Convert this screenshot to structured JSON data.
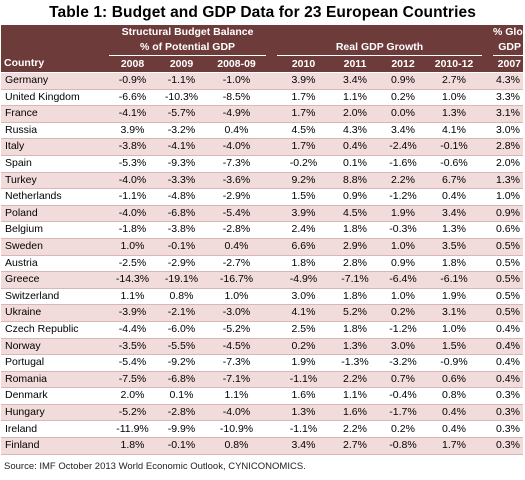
{
  "title": "Table 1:  Budget and GDP Data for 23 European Countries",
  "header": {
    "group_structural_line1": "Structural Budget Balance",
    "group_structural_line2": "% of Potential GDP",
    "group_real_gdp": "Real GDP Growth",
    "group_global_line1": "% Global",
    "group_global_line2": "GDP",
    "col_country": "Country",
    "col_sb_2008": "2008",
    "col_sb_2009": "2009",
    "col_sb_2008_09": "2008-09",
    "col_g_2010": "2010",
    "col_g_2011": "2011",
    "col_g_2012": "2012",
    "col_g_2010_12": "2010-12",
    "col_global_2007": "2007"
  },
  "rows": [
    {
      "country": "Germany",
      "sb2008": "-0.9%",
      "sb2009": "-1.1%",
      "sb0809": "-1.0%",
      "g2010": "3.9%",
      "g2011": "3.4%",
      "g2012": "0.9%",
      "g1012": "2.7%",
      "global": "4.3%"
    },
    {
      "country": "United Kingdom",
      "sb2008": "-6.6%",
      "sb2009": "-10.3%",
      "sb0809": "-8.5%",
      "g2010": "1.7%",
      "g2011": "1.1%",
      "g2012": "0.2%",
      "g1012": "1.0%",
      "global": "3.3%"
    },
    {
      "country": "France",
      "sb2008": "-4.1%",
      "sb2009": "-5.7%",
      "sb0809": "-4.9%",
      "g2010": "1.7%",
      "g2011": "2.0%",
      "g2012": "0.0%",
      "g1012": "1.3%",
      "global": "3.1%"
    },
    {
      "country": "Russia",
      "sb2008": "3.9%",
      "sb2009": "-3.2%",
      "sb0809": "0.4%",
      "g2010": "4.5%",
      "g2011": "4.3%",
      "g2012": "3.4%",
      "g1012": "4.1%",
      "global": "3.0%"
    },
    {
      "country": "Italy",
      "sb2008": "-3.8%",
      "sb2009": "-4.1%",
      "sb0809": "-4.0%",
      "g2010": "1.7%",
      "g2011": "0.4%",
      "g2012": "-2.4%",
      "g1012": "-0.1%",
      "global": "2.8%"
    },
    {
      "country": "Spain",
      "sb2008": "-5.3%",
      "sb2009": "-9.3%",
      "sb0809": "-7.3%",
      "g2010": "-0.2%",
      "g2011": "0.1%",
      "g2012": "-1.6%",
      "g1012": "-0.6%",
      "global": "2.0%"
    },
    {
      "country": "Turkey",
      "sb2008": "-4.0%",
      "sb2009": "-3.3%",
      "sb0809": "-3.6%",
      "g2010": "9.2%",
      "g2011": "8.8%",
      "g2012": "2.2%",
      "g1012": "6.7%",
      "global": "1.3%"
    },
    {
      "country": "Netherlands",
      "sb2008": "-1.1%",
      "sb2009": "-4.8%",
      "sb0809": "-2.9%",
      "g2010": "1.5%",
      "g2011": "0.9%",
      "g2012": "-1.2%",
      "g1012": "0.4%",
      "global": "1.0%"
    },
    {
      "country": "Poland",
      "sb2008": "-4.0%",
      "sb2009": "-6.8%",
      "sb0809": "-5.4%",
      "g2010": "3.9%",
      "g2011": "4.5%",
      "g2012": "1.9%",
      "g1012": "3.4%",
      "global": "0.9%"
    },
    {
      "country": "Belgium",
      "sb2008": "-1.8%",
      "sb2009": "-3.8%",
      "sb0809": "-2.8%",
      "g2010": "2.4%",
      "g2011": "1.8%",
      "g2012": "-0.3%",
      "g1012": "1.3%",
      "global": "0.6%"
    },
    {
      "country": "Sweden",
      "sb2008": "1.0%",
      "sb2009": "-0.1%",
      "sb0809": "0.4%",
      "g2010": "6.6%",
      "g2011": "2.9%",
      "g2012": "1.0%",
      "g1012": "3.5%",
      "global": "0.5%"
    },
    {
      "country": "Austria",
      "sb2008": "-2.5%",
      "sb2009": "-2.9%",
      "sb0809": "-2.7%",
      "g2010": "1.8%",
      "g2011": "2.8%",
      "g2012": "0.9%",
      "g1012": "1.8%",
      "global": "0.5%"
    },
    {
      "country": "Greece",
      "sb2008": "-14.3%",
      "sb2009": "-19.1%",
      "sb0809": "-16.7%",
      "g2010": "-4.9%",
      "g2011": "-7.1%",
      "g2012": "-6.4%",
      "g1012": "-6.1%",
      "global": "0.5%"
    },
    {
      "country": "Switzerland",
      "sb2008": "1.1%",
      "sb2009": "0.8%",
      "sb0809": "1.0%",
      "g2010": "3.0%",
      "g2011": "1.8%",
      "g2012": "1.0%",
      "g1012": "1.9%",
      "global": "0.5%"
    },
    {
      "country": "Ukraine",
      "sb2008": "-3.9%",
      "sb2009": "-2.1%",
      "sb0809": "-3.0%",
      "g2010": "4.1%",
      "g2011": "5.2%",
      "g2012": "0.2%",
      "g1012": "3.1%",
      "global": "0.5%"
    },
    {
      "country": "Czech Republic",
      "sb2008": "-4.4%",
      "sb2009": "-6.0%",
      "sb0809": "-5.2%",
      "g2010": "2.5%",
      "g2011": "1.8%",
      "g2012": "-1.2%",
      "g1012": "1.0%",
      "global": "0.4%"
    },
    {
      "country": "Norway",
      "sb2008": "-3.5%",
      "sb2009": "-5.5%",
      "sb0809": "-4.5%",
      "g2010": "0.2%",
      "g2011": "1.3%",
      "g2012": "3.0%",
      "g1012": "1.5%",
      "global": "0.4%"
    },
    {
      "country": "Portugal",
      "sb2008": "-5.4%",
      "sb2009": "-9.2%",
      "sb0809": "-7.3%",
      "g2010": "1.9%",
      "g2011": "-1.3%",
      "g2012": "-3.2%",
      "g1012": "-0.9%",
      "global": "0.4%"
    },
    {
      "country": "Romania",
      "sb2008": "-7.5%",
      "sb2009": "-6.8%",
      "sb0809": "-7.1%",
      "g2010": "-1.1%",
      "g2011": "2.2%",
      "g2012": "0.7%",
      "g1012": "0.6%",
      "global": "0.4%"
    },
    {
      "country": "Denmark",
      "sb2008": "2.0%",
      "sb2009": "0.1%",
      "sb0809": "1.1%",
      "g2010": "1.6%",
      "g2011": "1.1%",
      "g2012": "-0.4%",
      "g1012": "0.8%",
      "global": "0.3%"
    },
    {
      "country": "Hungary",
      "sb2008": "-5.2%",
      "sb2009": "-2.8%",
      "sb0809": "-4.0%",
      "g2010": "1.3%",
      "g2011": "1.6%",
      "g2012": "-1.7%",
      "g1012": "0.4%",
      "global": "0.3%"
    },
    {
      "country": "Ireland",
      "sb2008": "-11.9%",
      "sb2009": "-9.9%",
      "sb0809": "-10.9%",
      "g2010": "-1.1%",
      "g2011": "2.2%",
      "g2012": "0.2%",
      "g1012": "0.4%",
      "global": "0.3%"
    },
    {
      "country": "Finland",
      "sb2008": "1.8%",
      "sb2009": "-0.1%",
      "sb0809": "0.8%",
      "g2010": "3.4%",
      "g2011": "2.7%",
      "g2012": "-0.8%",
      "g1012": "1.7%",
      "global": "0.3%"
    }
  ],
  "source": "Source:  IMF October 2013 World Economic Outlook, CYNICONOMICS.",
  "colors": {
    "header_bg": "#6e3b3b",
    "band_bg": "#f2dcdb",
    "text": "#000000"
  }
}
